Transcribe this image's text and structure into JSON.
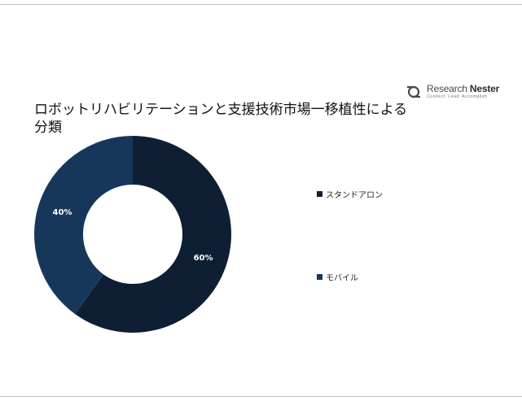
{
  "brand": {
    "name_light": "Research ",
    "name_bold": "Nester",
    "tagline": "Connect. Lead. Accomplish"
  },
  "chart_data": {
    "type": "pie",
    "donut": true,
    "title": "ロボットリハビリテーションと支援技術市場一移植性による分類",
    "categories": [
      "スタンドアロン",
      "モバイル"
    ],
    "values": [
      60,
      40
    ],
    "labels": [
      "60%",
      "40%"
    ],
    "colors": [
      "#0f1f33",
      "#17375a"
    ],
    "legend_position": "right",
    "start_angle": "top, clockwise"
  }
}
